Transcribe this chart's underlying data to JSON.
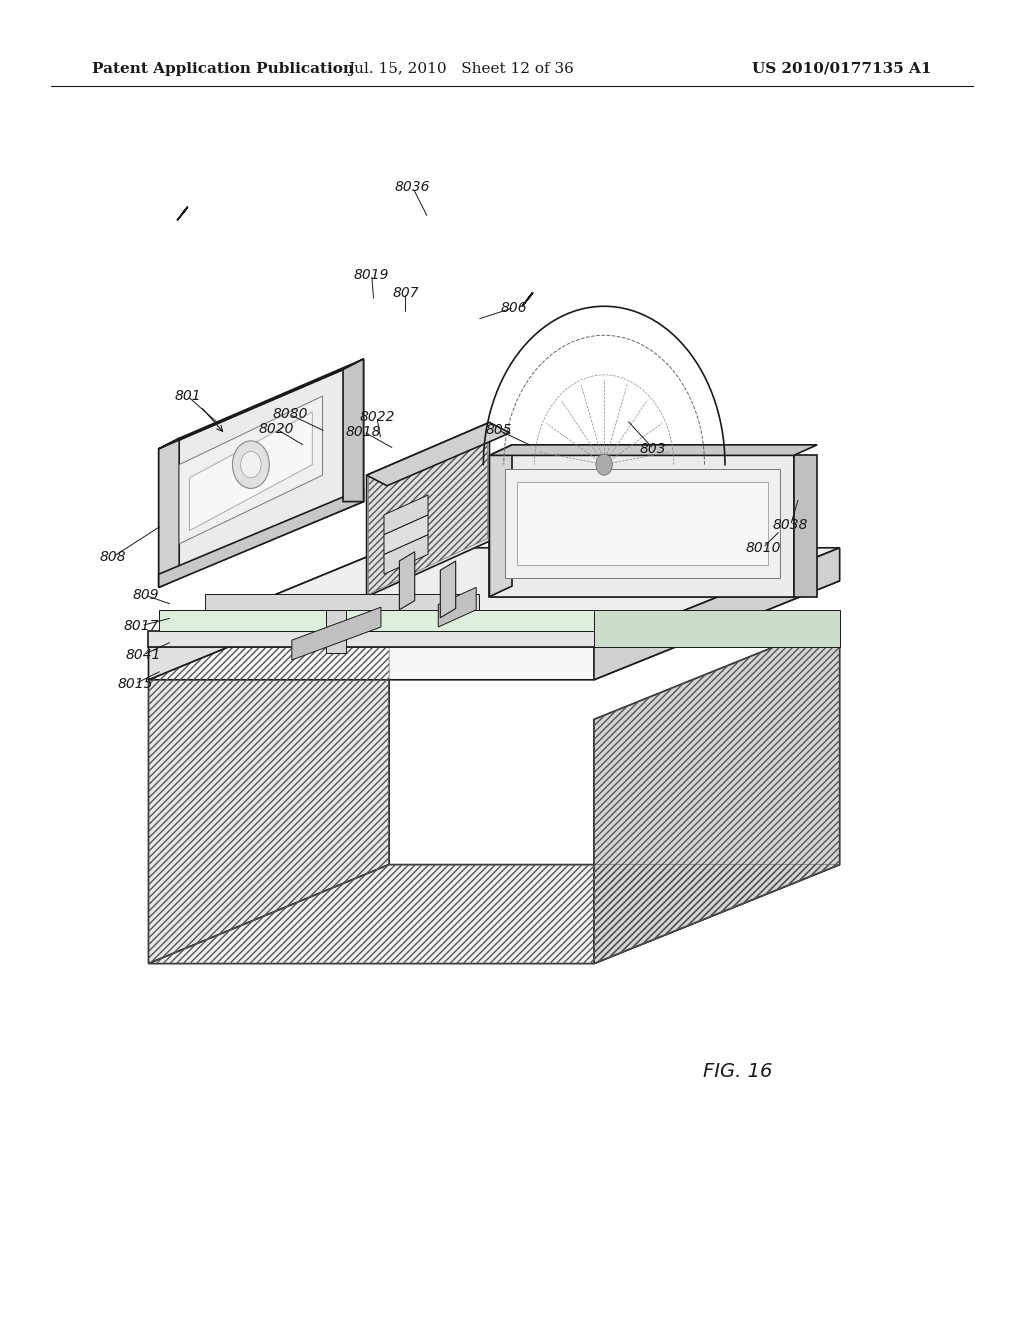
{
  "background_color": "#ffffff",
  "header_left": "Patent Application Publication",
  "header_center": "Jul. 15, 2010   Sheet 12 of 36",
  "header_right": "US 2010/0177135 A1",
  "figure_caption": "FIG. 16",
  "header_fontsize": 11,
  "label_fontsize": 10,
  "caption_fontsize": 14,
  "line_color": "#1a1a1a",
  "page_width": 10.24,
  "page_height": 13.2
}
